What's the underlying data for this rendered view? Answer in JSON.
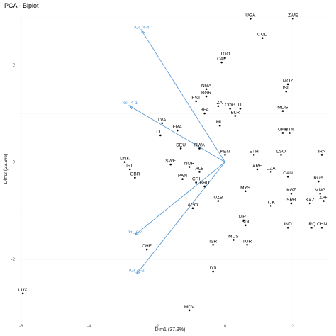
{
  "chart_data": {
    "type": "scatter",
    "title": "PCA - Biplot",
    "xlabel": "Dim1 (37.9%)",
    "ylabel": "Dim2 (23.9%)",
    "xlim": [
      -6.1,
      3.1
    ],
    "ylim": [
      -3.3,
      3.1
    ],
    "xticks": [
      -6,
      -4,
      -2,
      0,
      2
    ],
    "yticks": [
      -2,
      0,
      2
    ],
    "grid": true,
    "colors": {
      "points": "#000000",
      "arrows": "#5b9bd5",
      "zero_line": "#000000",
      "grid": "#ebebeb"
    },
    "points": [
      {
        "label": "UGA",
        "x": 0.75,
        "y": 2.95
      },
      {
        "label": "ZWE",
        "x": 2.0,
        "y": 2.95
      },
      {
        "label": "COD",
        "x": 1.1,
        "y": 2.55
      },
      {
        "label": "TGO",
        "x": 0.0,
        "y": 2.15
      },
      {
        "label": "CAF",
        "x": -0.1,
        "y": 2.05
      },
      {
        "label": "MOZ",
        "x": 1.85,
        "y": 1.6
      },
      {
        "label": "ISL",
        "x": 1.8,
        "y": 1.45
      },
      {
        "label": "NGA",
        "x": -0.55,
        "y": 1.5
      },
      {
        "label": "BGR",
        "x": -0.55,
        "y": 1.35
      },
      {
        "label": "EST",
        "x": -0.85,
        "y": 1.25
      },
      {
        "label": "TZA",
        "x": -0.2,
        "y": 1.15
      },
      {
        "label": "COG",
        "x": 0.15,
        "y": 1.1
      },
      {
        "label": "DI",
        "x": 0.45,
        "y": 1.1
      },
      {
        "label": "MDG",
        "x": 1.7,
        "y": 1.05
      },
      {
        "label": "BFA",
        "x": -0.6,
        "y": 1.0
      },
      {
        "label": "BLR",
        "x": 0.3,
        "y": 0.95
      },
      {
        "label": "LVA",
        "x": -1.85,
        "y": 0.8
      },
      {
        "label": "FRA",
        "x": -1.4,
        "y": 0.65
      },
      {
        "label": "LTU",
        "x": -1.9,
        "y": 0.55
      },
      {
        "label": "MLI",
        "x": -0.15,
        "y": 0.75
      },
      {
        "label": "UKR",
        "x": 1.7,
        "y": 0.6
      },
      {
        "label": "BTN",
        "x": 1.9,
        "y": 0.6
      },
      {
        "label": "DEU",
        "x": -1.3,
        "y": 0.28
      },
      {
        "label": "RWA",
        "x": -0.75,
        "y": 0.28
      },
      {
        "label": "KEN",
        "x": 0.0,
        "y": 0.15
      },
      {
        "label": "ETH",
        "x": 0.85,
        "y": 0.15
      },
      {
        "label": "LSO",
        "x": 1.65,
        "y": 0.15
      },
      {
        "label": "IRN",
        "x": 2.85,
        "y": 0.15
      },
      {
        "label": "DNK",
        "x": -2.95,
        "y": 0.0
      },
      {
        "label": "IRL",
        "x": -2.8,
        "y": -0.15
      },
      {
        "label": "GBR",
        "x": -2.65,
        "y": -0.32
      },
      {
        "label": "SWE",
        "x": -1.6,
        "y": -0.05
      },
      {
        "label": "NOR",
        "x": -1.05,
        "y": -0.1
      },
      {
        "label": "ALB",
        "x": -0.75,
        "y": -0.2
      },
      {
        "label": "ARE",
        "x": 0.95,
        "y": -0.15
      },
      {
        "label": "DZA",
        "x": 1.35,
        "y": -0.2
      },
      {
        "label": "CAN",
        "x": 1.85,
        "y": -0.3
      },
      {
        "label": "PAN",
        "x": -1.25,
        "y": -0.35
      },
      {
        "label": "CRI",
        "x": -0.85,
        "y": -0.42
      },
      {
        "label": "BRD",
        "x": -0.6,
        "y": -0.5
      },
      {
        "label": "RUS",
        "x": 2.75,
        "y": -0.4
      },
      {
        "label": "KGZ",
        "x": 1.95,
        "y": -0.65
      },
      {
        "label": "MNG",
        "x": 2.8,
        "y": -0.65
      },
      {
        "label": "ZAF",
        "x": 2.9,
        "y": -0.8
      },
      {
        "label": "SRB",
        "x": 1.95,
        "y": -0.85
      },
      {
        "label": "KAZ",
        "x": 2.5,
        "y": -0.85
      },
      {
        "label": "TJK",
        "x": 1.35,
        "y": -0.9
      },
      {
        "label": "AGO",
        "x": -0.95,
        "y": -0.95
      },
      {
        "label": "UZB",
        "x": -0.2,
        "y": -0.8
      },
      {
        "label": "MYS",
        "x": 0.6,
        "y": -0.6
      },
      {
        "label": "MRT",
        "x": 0.55,
        "y": -1.2
      },
      {
        "label": "BDI",
        "x": 0.6,
        "y": -1.3
      },
      {
        "label": "IND",
        "x": 1.85,
        "y": -1.35
      },
      {
        "label": "IRQ",
        "x": 2.55,
        "y": -1.35
      },
      {
        "label": "CHN",
        "x": 2.85,
        "y": -1.35
      },
      {
        "label": "MUS",
        "x": 0.25,
        "y": -1.6
      },
      {
        "label": "TUR",
        "x": 0.65,
        "y": -1.7
      },
      {
        "label": "ISR",
        "x": -0.35,
        "y": -1.7
      },
      {
        "label": "CHE",
        "x": -2.3,
        "y": -1.8
      },
      {
        "label": "DJI",
        "x": -0.35,
        "y": -2.25
      },
      {
        "label": "LUX",
        "x": -5.95,
        "y": -2.7
      },
      {
        "label": "MDV",
        "x": -1.05,
        "y": -3.05
      }
    ],
    "variables": [
      {
        "label": "IGI_4-4",
        "x": -2.45,
        "y": 2.7
      },
      {
        "label": "IGI_4-1",
        "x": -2.8,
        "y": 1.15
      },
      {
        "label": "IGI_4-3",
        "x": -2.65,
        "y": -1.5
      },
      {
        "label": "IGI_4-2",
        "x": -2.6,
        "y": -2.3
      }
    ]
  }
}
